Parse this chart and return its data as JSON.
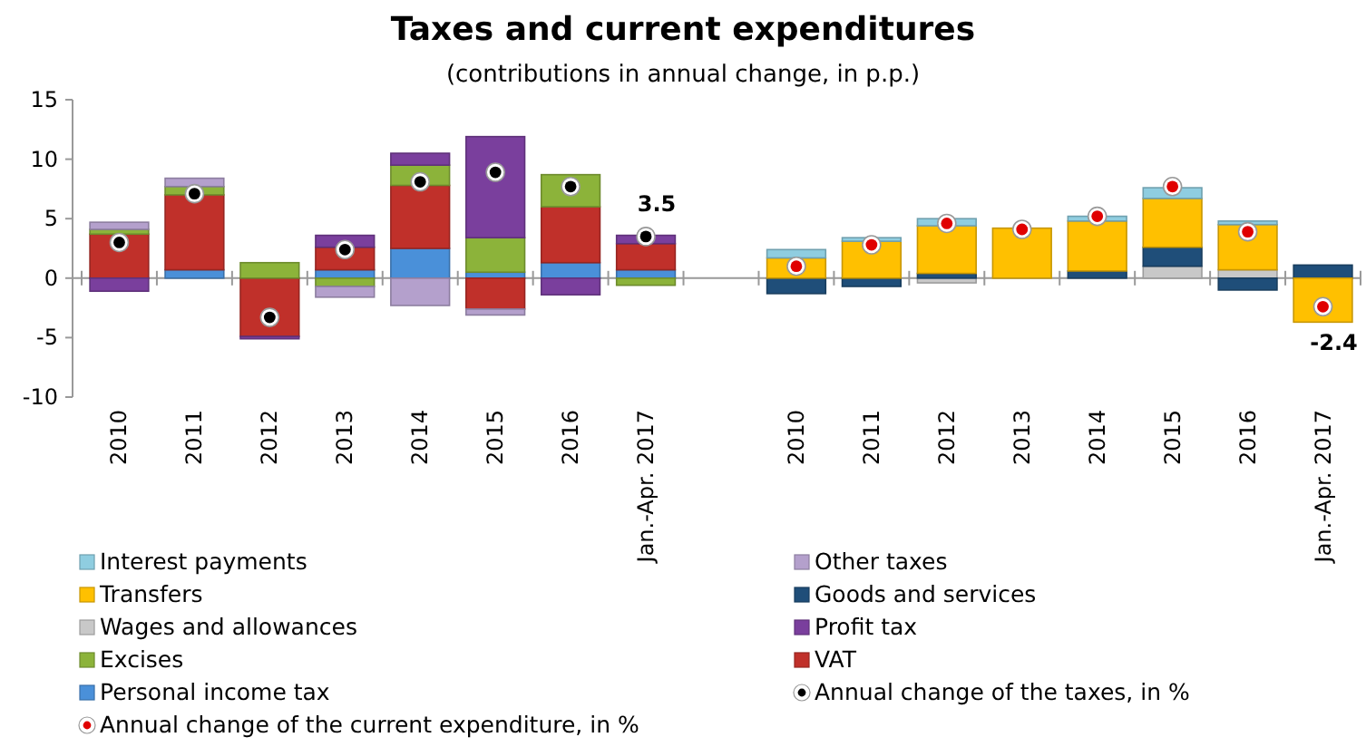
{
  "chart_data": {
    "type": "bar",
    "stacked": true,
    "title": "Taxes and current expenditures",
    "subtitle": "(contributions in annual change, in p.p.)",
    "categories": [
      "2010",
      "2011",
      "2012",
      "2013",
      "2014",
      "2015",
      "2016",
      "Jan.-Apr. 2017",
      null,
      "2010",
      "2011",
      "2012",
      "2013",
      "2014",
      "2015",
      "2016",
      "Jan.-Apr. 2017"
    ],
    "ylim": [
      -10,
      15
    ],
    "yticks": [
      -10,
      -5,
      0,
      5,
      10,
      15
    ],
    "legend": "bottom",
    "marker": "circle",
    "series": [
      {
        "name": "Personal income tax",
        "color": "#4a90d9",
        "values": [
          0,
          0.7,
          0,
          0.7,
          2.5,
          0.5,
          1.3,
          0.7,
          null,
          null,
          null,
          null,
          null,
          null,
          null,
          null,
          null
        ]
      },
      {
        "name": "VAT",
        "color": "#c0302a",
        "values": [
          3.7,
          6.3,
          -4.9,
          1.9,
          5.3,
          -2.6,
          4.7,
          2.2,
          null,
          null,
          null,
          null,
          null,
          null,
          null,
          null,
          null
        ]
      },
      {
        "name": "Excises",
        "color": "#8cb33a",
        "values": [
          0.4,
          0.7,
          1.3,
          -0.7,
          1.7,
          2.9,
          2.7,
          -0.6,
          null,
          null,
          null,
          null,
          null,
          null,
          null,
          null,
          null
        ]
      },
      {
        "name": "Profit tax",
        "color": "#7a3f9d",
        "values": [
          -1.1,
          0,
          -0.2,
          1.0,
          1.0,
          8.5,
          -1.4,
          0.7,
          null,
          null,
          null,
          null,
          null,
          null,
          null,
          null,
          null
        ]
      },
      {
        "name": "Wages and allowances",
        "color": "#c8c8c8",
        "values": [
          null,
          null,
          null,
          null,
          null,
          null,
          null,
          null,
          null,
          0,
          0,
          -0.4,
          null,
          0,
          1.0,
          0.7,
          0
        ]
      },
      {
        "name": "Goods and services",
        "color": "#1f4e79",
        "values": [
          null,
          null,
          null,
          null,
          null,
          null,
          null,
          null,
          null,
          -1.3,
          -0.7,
          0.4,
          0,
          0.6,
          1.6,
          -1.0,
          1.1
        ]
      },
      {
        "name": "Transfers",
        "color": "#ffc000",
        "values": [
          null,
          null,
          null,
          null,
          null,
          null,
          null,
          null,
          null,
          1.7,
          3.1,
          4.0,
          4.2,
          4.2,
          4.1,
          3.8,
          -3.7
        ]
      },
      {
        "name": "Other taxes",
        "color": "#b4a0cc",
        "values": [
          0.6,
          0.7,
          0,
          -0.9,
          -2.3,
          -0.5,
          0,
          0,
          null,
          null,
          null,
          null,
          null,
          null,
          null,
          null,
          null
        ]
      },
      {
        "name": "Interest payments",
        "color": "#8fcde0",
        "values": [
          null,
          null,
          null,
          null,
          null,
          null,
          null,
          null,
          null,
          0.7,
          0.3,
          0.6,
          null,
          0.4,
          0.9,
          0.3,
          0
        ]
      },
      {
        "name": "Annual change of the taxes, in %",
        "type": "scatter",
        "color": "#000000",
        "values": [
          3.0,
          7.1,
          -3.3,
          2.4,
          8.1,
          8.9,
          7.7,
          3.5,
          null,
          null,
          null,
          null,
          null,
          null,
          null,
          null,
          null
        ],
        "value_labels": [
          null,
          null,
          null,
          null,
          null,
          null,
          null,
          "3.5",
          null,
          null,
          null,
          null,
          null,
          null,
          null,
          null,
          null
        ]
      },
      {
        "name": "Annual change of the current expenditure, in %",
        "type": "scatter",
        "color": "#e00000",
        "values": [
          null,
          null,
          null,
          null,
          null,
          null,
          null,
          null,
          null,
          1.0,
          2.8,
          4.6,
          4.1,
          5.2,
          7.7,
          3.9,
          -2.4
        ],
        "value_labels": [
          null,
          null,
          null,
          null,
          null,
          null,
          null,
          null,
          null,
          null,
          null,
          null,
          null,
          null,
          null,
          null,
          "-2.4"
        ]
      }
    ]
  }
}
